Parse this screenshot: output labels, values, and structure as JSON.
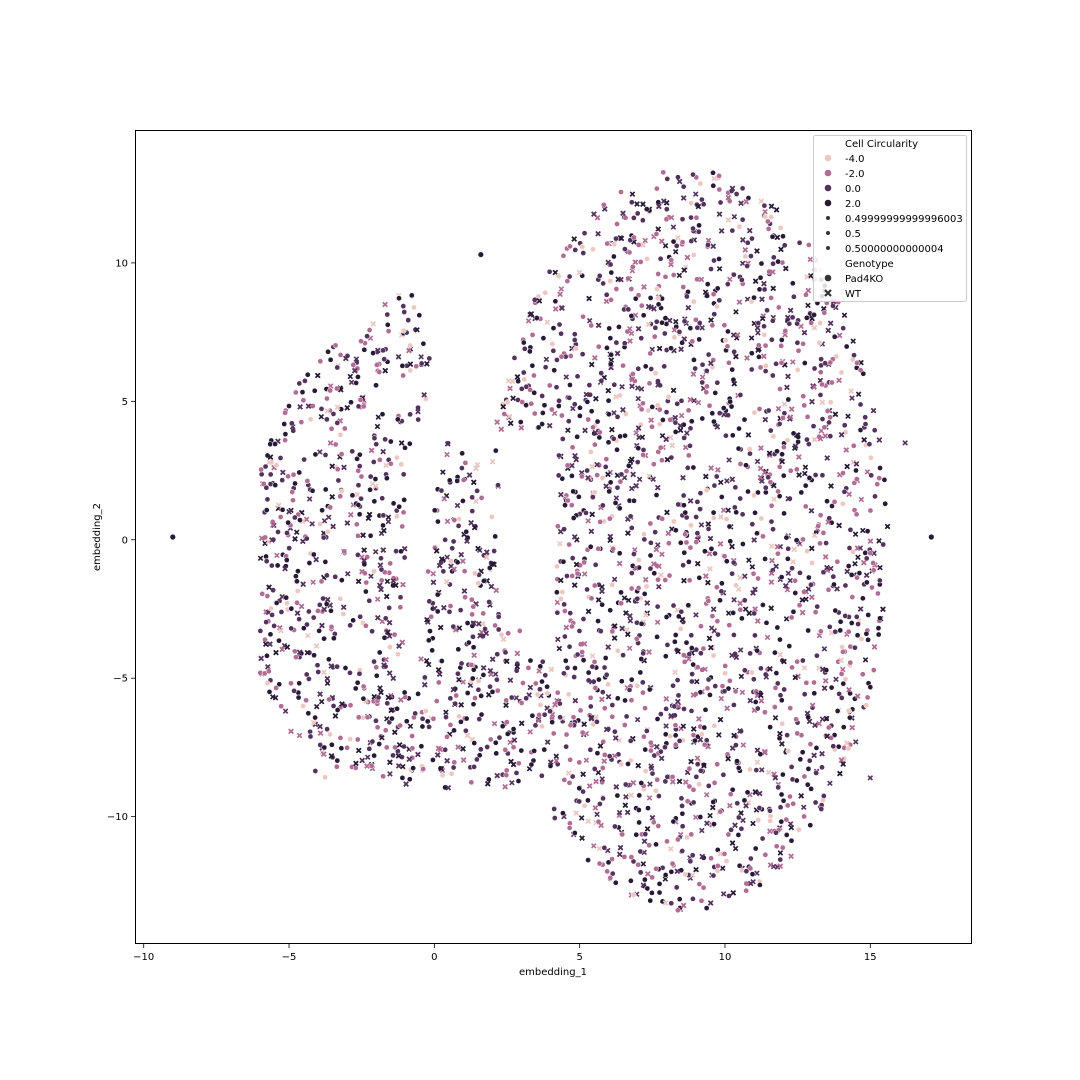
{
  "chart_data": {
    "type": "scatter",
    "title": "",
    "xlabel": "embedding_1",
    "ylabel": "embedding_2",
    "xlim": [
      -10.3,
      18.5
    ],
    "ylim": [
      -14.6,
      14.8
    ],
    "xticks": [
      -10,
      -5,
      0,
      5,
      10,
      15
    ],
    "yticks": [
      -10,
      -5,
      0,
      5,
      10
    ],
    "xtick_labels": [
      "−10",
      "−5",
      "0",
      "5",
      "10",
      "15"
    ],
    "ytick_labels": [
      "−10",
      "−5",
      "0",
      "5",
      "10"
    ],
    "grid": false,
    "legend": {
      "placement": "upper right",
      "hue_title": "Cell Circularity",
      "hue_entries": [
        {
          "label": "-4.0",
          "color": "#edc7c0"
        },
        {
          "label": "-2.0",
          "color": "#b36b94"
        },
        {
          "label": "0.0",
          "color": "#53325e"
        },
        {
          "label": "2.0",
          "color": "#261a36"
        }
      ],
      "size_entries": [
        {
          "label": "0.49999999999996003"
        },
        {
          "label": "0.5"
        },
        {
          "label": "0.50000000000004"
        }
      ],
      "style_title": "Genotype",
      "style_entries": [
        {
          "label": "Pad4KO",
          "marker": "circle"
        },
        {
          "label": "WT",
          "marker": "x"
        }
      ]
    },
    "clusters": [
      {
        "name": "left lobe",
        "x_range": [
          -6.0,
          0.4
        ],
        "y_range": [
          -8.7,
          9.0
        ]
      },
      {
        "name": "bridge",
        "x_range": [
          -1.0,
          3.4
        ],
        "y_range": [
          -9.0,
          3.5
        ]
      },
      {
        "name": "main cluster",
        "x_range": [
          1.8,
          15.6
        ],
        "y_range": [
          -13.4,
          13.4
        ]
      }
    ],
    "outliers": [
      {
        "x": -9.0,
        "y": 0.1,
        "genotype": "Pad4KO"
      },
      {
        "x": 17.1,
        "y": 0.1,
        "genotype": "Pad4KO"
      },
      {
        "x": 16.2,
        "y": 3.5,
        "genotype": "WT"
      },
      {
        "x": 14.5,
        "y": -7.3,
        "genotype": "WT"
      },
      {
        "x": 15.0,
        "y": -8.6,
        "genotype": "WT"
      },
      {
        "x": 1.6,
        "y": 10.3,
        "genotype": "Pad4KO"
      }
    ]
  }
}
